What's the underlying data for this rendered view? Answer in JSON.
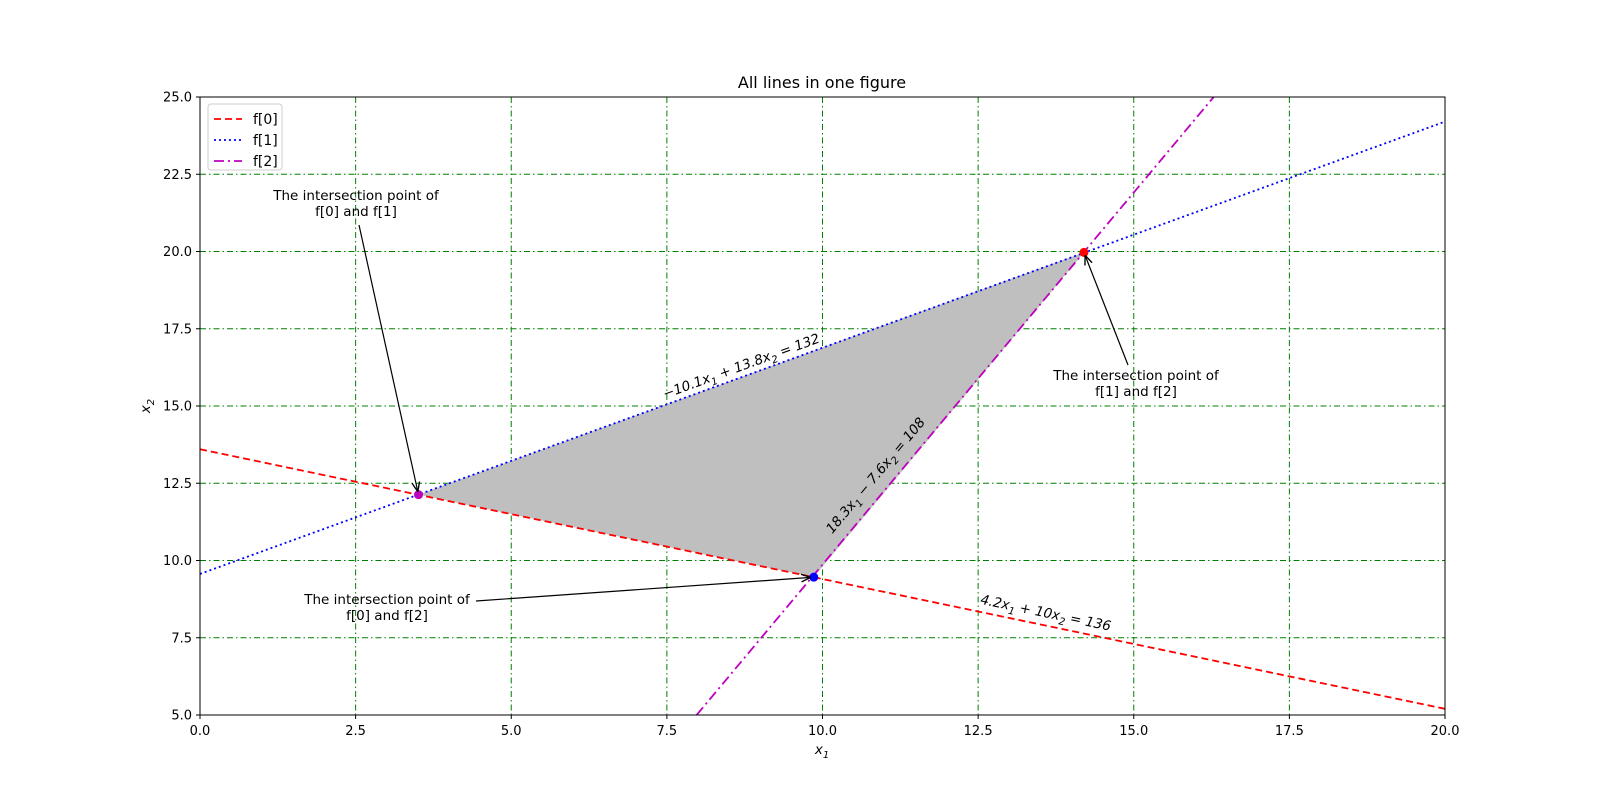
{
  "chart_data": {
    "type": "line",
    "title": "All lines in one figure",
    "xlabel_main": "x",
    "xlabel_sub": "1",
    "ylabel_main": "x",
    "ylabel_sub": "2",
    "xlim": [
      0,
      20
    ],
    "ylim": [
      5,
      25
    ],
    "xticks": [
      0,
      2.5,
      5,
      7.5,
      10,
      12.5,
      15,
      17.5,
      20
    ],
    "xtick_labels": [
      "0.0",
      "2.5",
      "5.0",
      "7.5",
      "10.0",
      "12.5",
      "15.0",
      "17.5",
      "20.0"
    ],
    "yticks": [
      5,
      7.5,
      10,
      12.5,
      15,
      17.5,
      20,
      22.5,
      25
    ],
    "ytick_labels": [
      "5.0",
      "7.5",
      "10.0",
      "12.5",
      "15.0",
      "17.5",
      "20.0",
      "22.5",
      "25.0"
    ],
    "grid": true,
    "grid_color": "#008000",
    "legend_position": "top-left",
    "series": [
      {
        "name": "f[0]",
        "a": 4.2,
        "b": 10,
        "c": 136,
        "color": "#ff0000",
        "style": "dashed",
        "equation": {
          "pre": "4.2x",
          "s1": "1",
          "mid": " + 10x",
          "s2": "2",
          "post": " = 136"
        }
      },
      {
        "name": "f[1]",
        "a": -10.1,
        "b": 13.8,
        "c": 132,
        "color": "#0000ff",
        "style": "dotted",
        "equation": {
          "pre": "−10.1x",
          "s1": "1",
          "mid": " + 13.8x",
          "s2": "2",
          "post": " = 132"
        }
      },
      {
        "name": "f[2]",
        "a": 18.3,
        "b": -7.6,
        "c": 108,
        "color": "#bf00bf",
        "style": "dashdot",
        "equation": {
          "pre": "18.3x",
          "s1": "1",
          "mid": " − 7.6x",
          "s2": "2",
          "post": " = 108"
        }
      }
    ],
    "intersections": [
      {
        "x": 3.51,
        "y": 12.13,
        "color": "#bf00bf",
        "label_line1": "The intersection point of",
        "label_line2": "f[0] and f[1]"
      },
      {
        "x": 9.86,
        "y": 9.46,
        "color": "#0000ff",
        "label_line1": "The intersection point of",
        "label_line2": "f[0] and f[2]"
      },
      {
        "x": 14.2,
        "y": 19.97,
        "color": "#ff0000",
        "label_line1": "The intersection point of",
        "label_line2": "f[1] and f[2]"
      }
    ],
    "feasible_region": {
      "fill": "#bfbfbf"
    }
  }
}
